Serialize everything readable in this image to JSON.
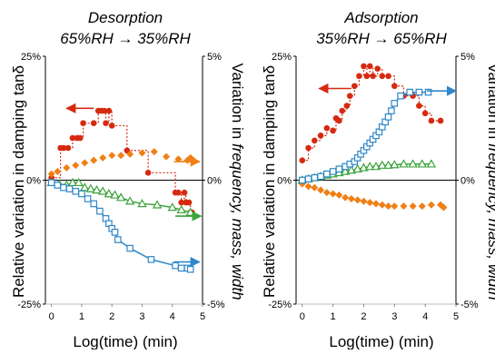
{
  "colors": {
    "damping": "#d62a10",
    "frequency": "#2f87c8",
    "mass": "#3ca33b",
    "width": "#f07f14",
    "zero_line": "#000000",
    "axis": "#000000"
  },
  "chart_data": [
    {
      "type": "scatter",
      "title_line1": "Desorption",
      "title_line2": "65%RH → 35%RH",
      "xlabel": "Log(time) (min)",
      "ylabel_left": "Relative variation in damping tanδ",
      "ylabel_right_parts": [
        "Variation in ",
        "frequency, mass, width"
      ],
      "xlim": [
        -0.2,
        5
      ],
      "xticks": [
        "0",
        "1",
        "2",
        "3",
        "4",
        "5"
      ],
      "ylim_left": [
        -25,
        25
      ],
      "yticks_left": [
        "25%",
        "0%",
        "-25%"
      ],
      "ylim_right": [
        -5,
        5
      ],
      "yticks_right": [
        "5%",
        "0%",
        "-5%"
      ],
      "series": [
        {
          "key": "damping",
          "axis": "left",
          "marker": "circle",
          "line": "dotted-steps",
          "x": [
            0.0,
            0.3,
            0.4,
            0.55,
            0.7,
            0.85,
            0.95,
            1.05,
            1.4,
            1.55,
            1.65,
            1.75,
            1.8,
            1.9,
            2.0,
            2.5,
            3.2,
            4.1,
            4.2,
            4.3,
            4.4,
            4.45,
            4.55,
            4.6,
            4.65
          ],
          "y": [
            0.5,
            6.5,
            6.5,
            6.5,
            8.5,
            8.5,
            8.5,
            11.5,
            11.5,
            14.0,
            14.0,
            14.0,
            11.5,
            14.0,
            11.0,
            6.0,
            1.5,
            -2.5,
            -2.5,
            -4.5,
            -2.5,
            -4.5,
            -4.5,
            -6.5,
            -6.5
          ]
        },
        {
          "key": "width",
          "axis": "right",
          "marker": "diamond",
          "line": "none",
          "x": [
            0.0,
            0.2,
            0.5,
            0.8,
            1.1,
            1.4,
            1.7,
            2.0,
            2.3,
            2.6,
            3.0,
            3.4,
            3.8,
            4.2,
            4.5,
            4.6,
            4.7
          ],
          "y": [
            0.25,
            0.35,
            0.5,
            0.6,
            0.7,
            0.8,
            0.9,
            1.0,
            1.0,
            1.05,
            1.1,
            1.15,
            0.95,
            0.85,
            0.8,
            0.9,
            0.8
          ]
        },
        {
          "key": "mass",
          "axis": "right",
          "marker": "triangle",
          "line": "solid",
          "x": [
            0.0,
            0.25,
            0.5,
            0.7,
            0.9,
            1.1,
            1.3,
            1.5,
            1.7,
            1.9,
            2.1,
            2.3,
            2.6,
            3.0,
            3.5,
            4.0,
            4.3,
            4.6
          ],
          "y": [
            -0.1,
            -0.15,
            -0.2,
            -0.1,
            -0.1,
            -0.3,
            -0.35,
            -0.4,
            -0.45,
            -0.55,
            -0.6,
            -0.7,
            -0.85,
            -0.95,
            -1.0,
            -1.1,
            -1.2,
            -1.3
          ]
        },
        {
          "key": "frequency",
          "axis": "right",
          "marker": "square",
          "line": "solid",
          "x": [
            0.0,
            0.2,
            0.4,
            0.6,
            0.8,
            1.0,
            1.2,
            1.4,
            1.6,
            1.8,
            1.9,
            2.0,
            2.1,
            2.2,
            2.6,
            3.3,
            4.1,
            4.3,
            4.5,
            4.6
          ],
          "y": [
            -0.1,
            -0.2,
            -0.3,
            -0.35,
            -0.45,
            -0.55,
            -0.75,
            -0.95,
            -1.25,
            -1.55,
            -1.75,
            -1.95,
            -2.1,
            -2.4,
            -2.75,
            -3.2,
            -3.45,
            -3.55,
            -3.55,
            -3.6
          ]
        }
      ],
      "arrows": [
        {
          "key": "damping",
          "axis": "left",
          "from": [
            1.4,
            14.5
          ],
          "to": [
            0.5,
            14.5
          ]
        },
        {
          "key": "width",
          "axis": "right",
          "from": [
            4.05,
            0.75
          ],
          "to": [
            4.9,
            0.75
          ]
        },
        {
          "key": "mass",
          "axis": "right",
          "from": [
            4.1,
            -1.45
          ],
          "to": [
            4.95,
            -1.45
          ]
        },
        {
          "key": "frequency",
          "axis": "right",
          "from": [
            4.05,
            -3.3
          ],
          "to": [
            4.9,
            -3.3
          ]
        }
      ]
    },
    {
      "type": "scatter",
      "title_line1": "Adsorption",
      "title_line2": "35%RH → 65%RH",
      "xlabel": "Log(time) (min)",
      "ylabel_left": "Relative variation in damping tanδ",
      "ylabel_right_parts": [
        "Variation in ",
        "frequency, mass, width"
      ],
      "xlim": [
        -0.2,
        5
      ],
      "xticks": [
        "0",
        "1",
        "2",
        "3",
        "4",
        "5"
      ],
      "ylim_left": [
        -25,
        25
      ],
      "yticks_left": [
        "25%",
        "0%",
        "-25%"
      ],
      "ylim_right": [
        -5,
        5
      ],
      "yticks_right": [
        "5%",
        "0%",
        "-5%"
      ],
      "series": [
        {
          "key": "damping",
          "axis": "left",
          "marker": "circle",
          "line": "dotted-steps",
          "x": [
            0.0,
            0.2,
            0.4,
            0.6,
            0.8,
            1.0,
            1.1,
            1.2,
            1.3,
            1.45,
            1.55,
            1.7,
            1.85,
            2.0,
            2.1,
            2.2,
            2.3,
            2.45,
            2.6,
            2.8,
            3.0,
            3.3,
            3.6,
            3.8,
            4.0,
            4.2,
            4.5
          ],
          "y": [
            4.0,
            6.5,
            8.0,
            9.0,
            10.5,
            10.0,
            12.5,
            12.0,
            14.0,
            15.0,
            17.0,
            19.0,
            21.0,
            23.0,
            21.0,
            23.0,
            21.0,
            22.5,
            21.0,
            21.0,
            19.0,
            17.0,
            17.0,
            15.0,
            13.5,
            12.0,
            12.0
          ]
        },
        {
          "key": "width",
          "axis": "right",
          "marker": "diamond",
          "line": "none",
          "x": [
            0.0,
            0.2,
            0.4,
            0.6,
            0.8,
            1.0,
            1.2,
            1.4,
            1.6,
            1.8,
            2.0,
            2.2,
            2.4,
            2.6,
            2.8,
            3.0,
            3.3,
            3.6,
            3.9,
            4.2,
            4.5,
            4.6
          ],
          "y": [
            -0.15,
            -0.25,
            -0.3,
            -0.4,
            -0.5,
            -0.55,
            -0.6,
            -0.7,
            -0.75,
            -0.8,
            -0.85,
            -0.9,
            -0.95,
            -1.0,
            -1.05,
            -1.05,
            -1.05,
            -1.05,
            -1.05,
            -1.0,
            -1.0,
            -1.1
          ]
        },
        {
          "key": "mass",
          "axis": "right",
          "marker": "triangle",
          "line": "solid",
          "x": [
            0.0,
            0.2,
            0.4,
            0.6,
            0.8,
            1.0,
            1.2,
            1.4,
            1.6,
            1.8,
            2.0,
            2.2,
            2.4,
            2.6,
            2.8,
            3.0,
            3.3,
            3.6,
            3.9,
            4.2
          ],
          "y": [
            0.0,
            0.05,
            0.1,
            0.15,
            0.2,
            0.25,
            0.3,
            0.35,
            0.4,
            0.45,
            0.5,
            0.55,
            0.55,
            0.6,
            0.6,
            0.62,
            0.65,
            0.65,
            0.65,
            0.65
          ]
        },
        {
          "key": "frequency",
          "axis": "right",
          "marker": "square",
          "line": "solid",
          "x": [
            0.0,
            0.2,
            0.4,
            0.6,
            0.8,
            1.0,
            1.2,
            1.4,
            1.55,
            1.7,
            1.8,
            1.9,
            2.0,
            2.1,
            2.2,
            2.3,
            2.4,
            2.5,
            2.6,
            2.7,
            2.8,
            2.9,
            3.0,
            3.2,
            3.5,
            3.8,
            4.1
          ],
          "y": [
            0.0,
            0.05,
            0.1,
            0.15,
            0.25,
            0.35,
            0.45,
            0.55,
            0.65,
            0.75,
            0.9,
            1.05,
            1.2,
            1.35,
            1.5,
            1.65,
            1.8,
            1.95,
            2.15,
            2.35,
            2.55,
            2.8,
            3.1,
            3.4,
            3.55,
            3.55,
            3.55
          ]
        }
      ],
      "arrows": [
        {
          "key": "damping",
          "axis": "left",
          "from": [
            1.6,
            18.5
          ],
          "to": [
            0.55,
            18.5
          ]
        },
        {
          "key": "frequency",
          "axis": "right",
          "from": [
            4.05,
            3.6
          ],
          "to": [
            5.0,
            3.6
          ]
        }
      ]
    }
  ]
}
